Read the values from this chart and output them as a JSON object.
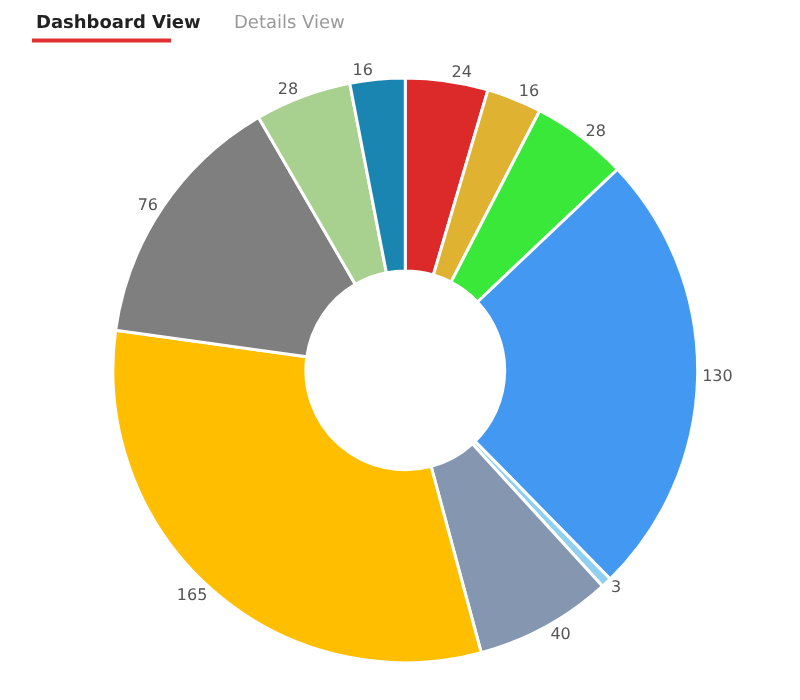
{
  "chart_data": {
    "type": "donut",
    "categories": [
      null,
      null,
      null,
      null,
      null,
      null,
      null,
      null,
      null,
      null
    ],
    "values": [
      24,
      16,
      28,
      130,
      3,
      40,
      165,
      76,
      28,
      16
    ],
    "colors": [
      "#dc2a2a",
      "#e0b232",
      "#3ae83a",
      "#4399f2",
      "#8fcff0",
      "#8596b0",
      "#ffbf00",
      "#7f7f7f",
      "#a8d08e",
      "#1a85b0"
    ],
    "data_labels": true,
    "legend": false,
    "annotations": [
      "Dashboard View",
      "Details View"
    ]
  }
}
